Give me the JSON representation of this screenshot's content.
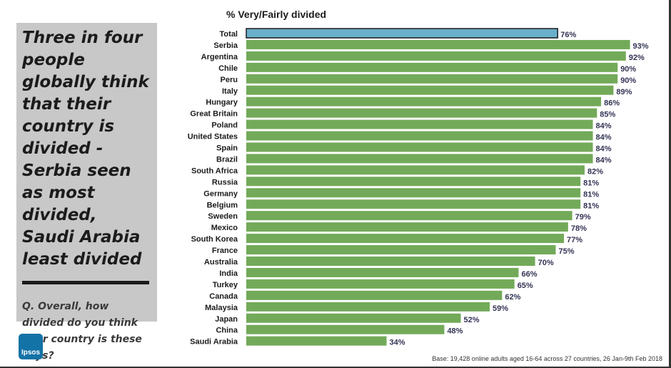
{
  "headline": "Three in four people globally think that their country is divided - Serbia seen as most divided, Saudi Arabia least divided",
  "question": "Q. Overall, how divided do you think your country is these days?",
  "logo": {
    "text": "Ipsos",
    "icon": "ipsos-logo-icon"
  },
  "footnote": "Base: 19,428 online adults aged 16-64 across 27 countries,  26 Jan-9th Feb 2018",
  "colors": {
    "bar": "#73aa59",
    "total_bar": "#6aafcb",
    "panel": "#c8c8c8"
  },
  "chart_data": {
    "type": "bar",
    "orientation": "horizontal",
    "title": "% Very/Fairly divided",
    "unit": "%",
    "xlim": [
      0,
      100
    ],
    "categories": [
      "Total",
      "Serbia",
      "Argentina",
      "Chile",
      "Peru",
      "Italy",
      "Hungary",
      "Great Britain",
      "Poland",
      "United States",
      "Spain",
      "Brazil",
      "South Africa",
      "Russia",
      "Germany",
      "Belgium",
      "Sweden",
      "Mexico",
      "South Korea",
      "France",
      "Australia",
      "India",
      "Turkey",
      "Canada",
      "Malaysia",
      "Japan",
      "China",
      "Saudi Arabia"
    ],
    "values": [
      76,
      93,
      92,
      90,
      90,
      89,
      86,
      85,
      84,
      84,
      84,
      84,
      82,
      81,
      81,
      81,
      79,
      78,
      77,
      75,
      70,
      66,
      65,
      62,
      59,
      52,
      48,
      34
    ],
    "labels": [
      "76%",
      "93%",
      "92%",
      "90%",
      "90%",
      "89%",
      "86%",
      "85%",
      "84%",
      "84%",
      "84%",
      "84%",
      "82%",
      "81%",
      "81%",
      "81%",
      "79%",
      "78%",
      "77%",
      "75%",
      "70%",
      "66%",
      "65%",
      "62%",
      "59%",
      "52%",
      "48%",
      "34%"
    ],
    "highlight_category": "Total"
  }
}
